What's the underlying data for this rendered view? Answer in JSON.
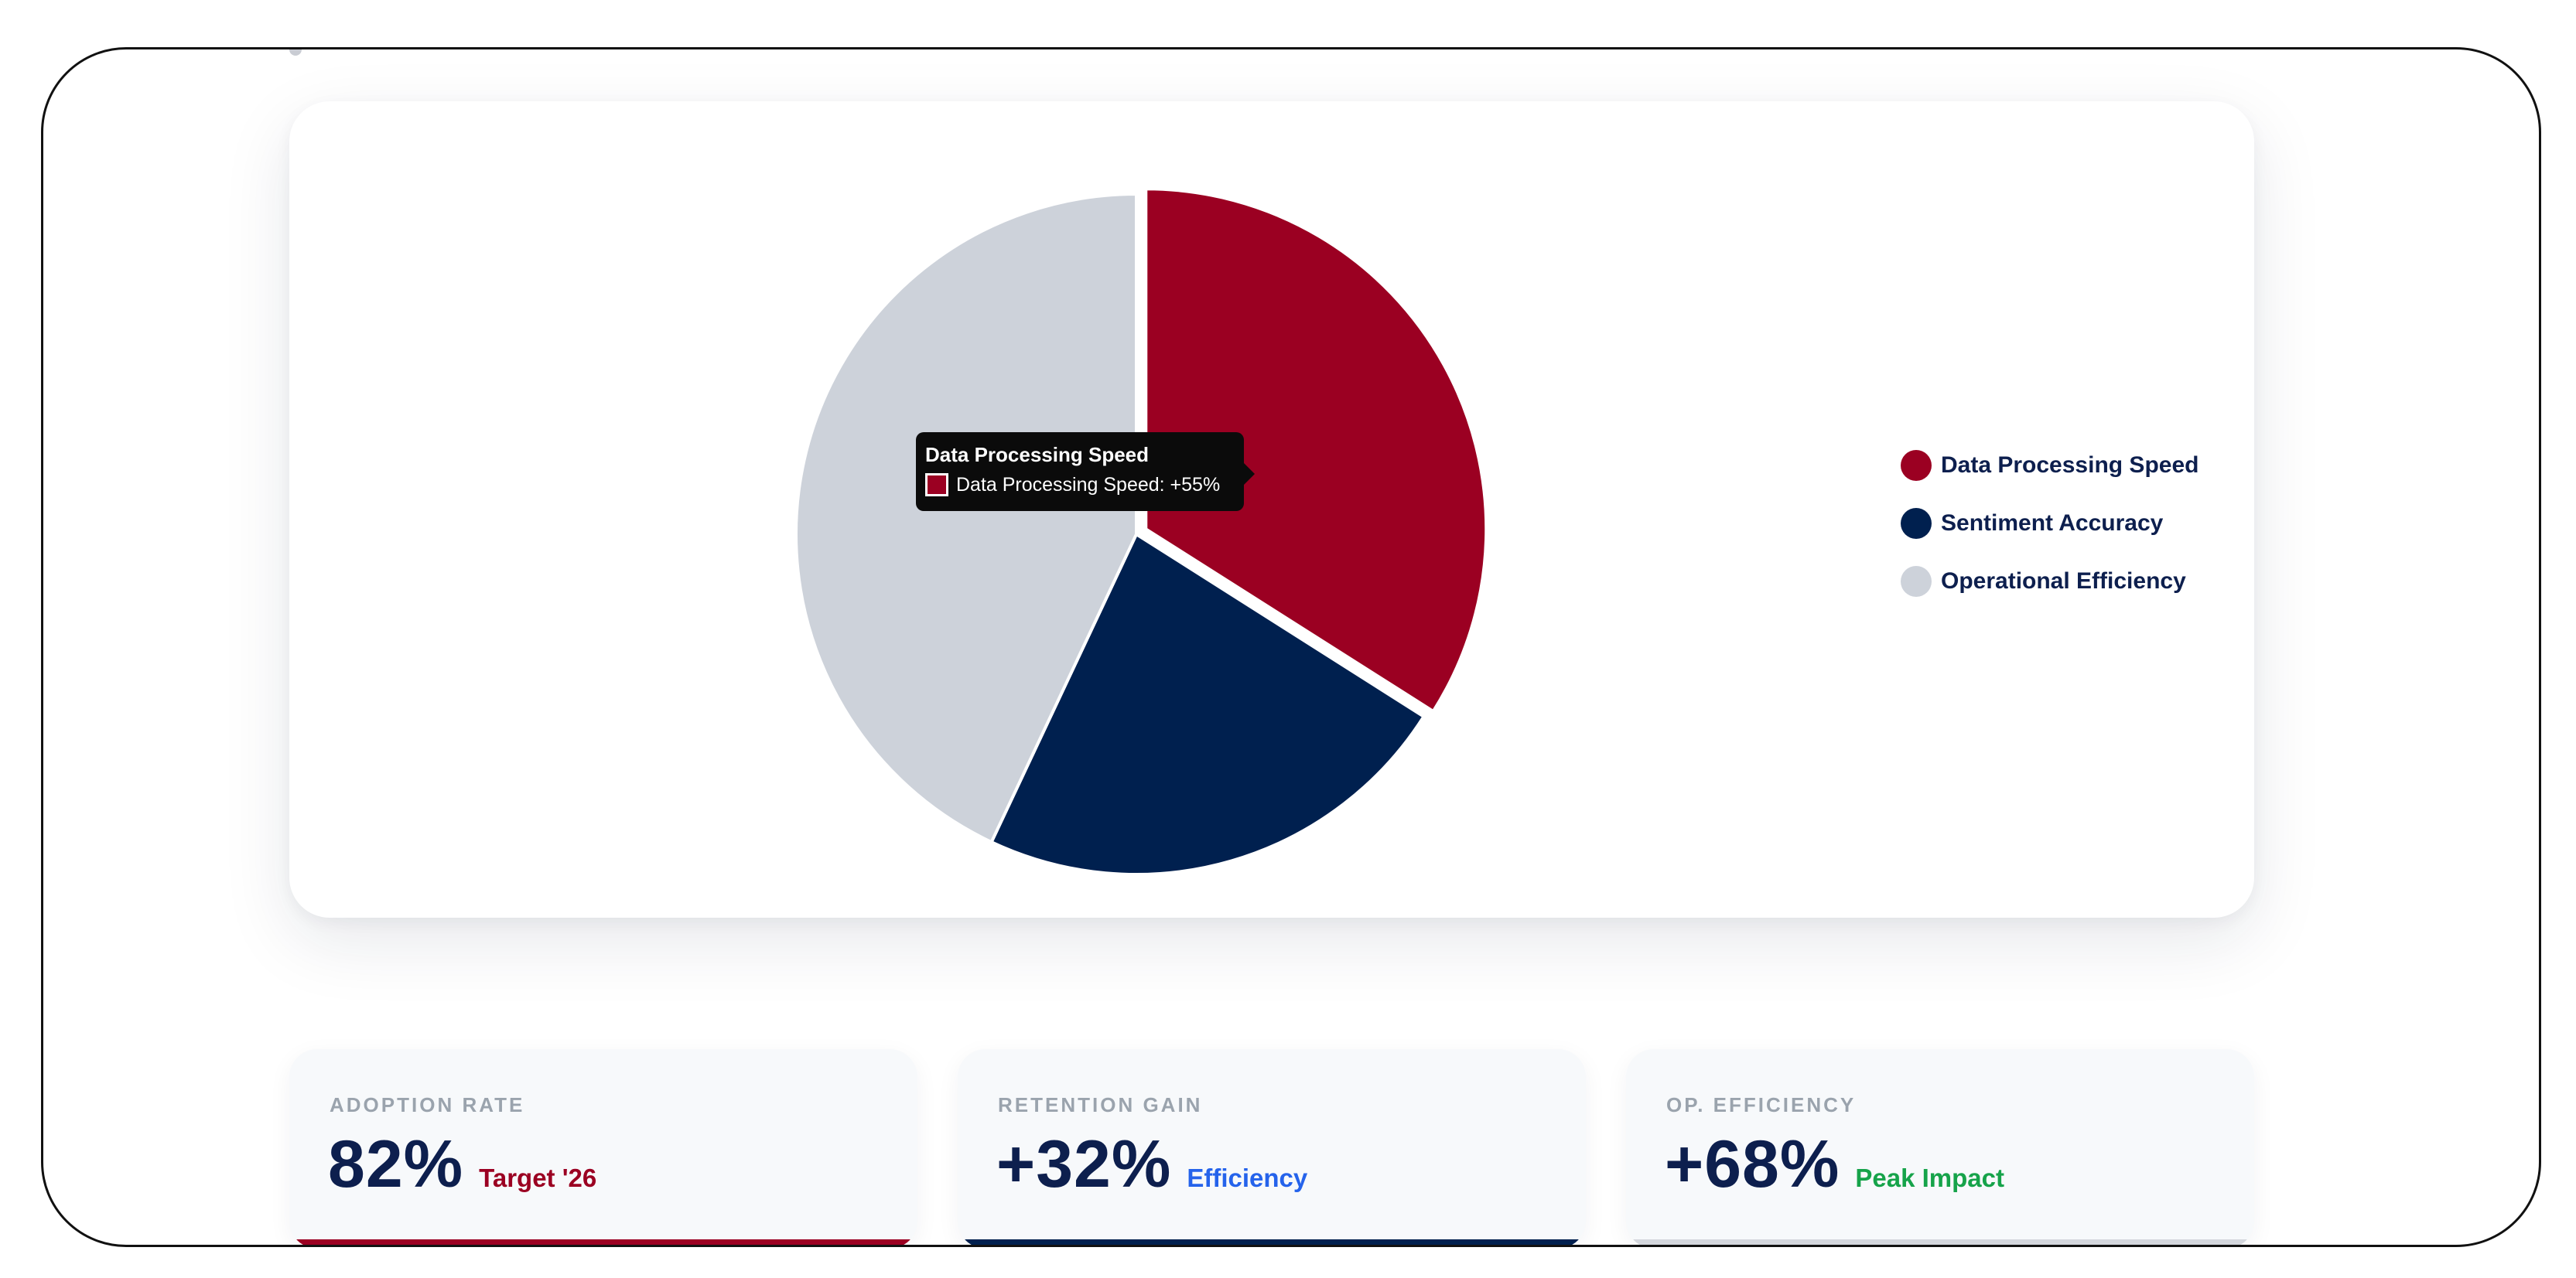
{
  "colors": {
    "accent_red": "#9b0022",
    "navy": "#00204f",
    "light_gray": "#cdd2da",
    "efficiency_blue": "#2563eb",
    "peak_green": "#16a34a"
  },
  "chart_data": {
    "type": "pie",
    "categories": [
      "Data Processing Speed",
      "Sentiment Accuracy",
      "Operational Efficiency"
    ],
    "values": [
      34,
      23,
      43
    ],
    "colors": [
      "#9b0022",
      "#00204f",
      "#cdd2da"
    ],
    "exploded": "Data Processing Speed",
    "legend_position": "right",
    "tooltip": {
      "title": "Data Processing Speed",
      "label": "Data Processing Speed: +55%"
    }
  },
  "stats": [
    {
      "label": "ADOPTION RATE",
      "value": "82%",
      "note": "Target '26",
      "note_color": "#9b0022",
      "bar_color": "#9b0022"
    },
    {
      "label": "RETENTION GAIN",
      "value": "+32%",
      "note": "Efficiency",
      "note_color": "#2563eb",
      "bar_color": "#00204f"
    },
    {
      "label": "OP. EFFICIENCY",
      "value": "+68%",
      "note": "Peak Impact",
      "note_color": "#16a34a",
      "bar_color": "#d4d7dd"
    }
  ]
}
